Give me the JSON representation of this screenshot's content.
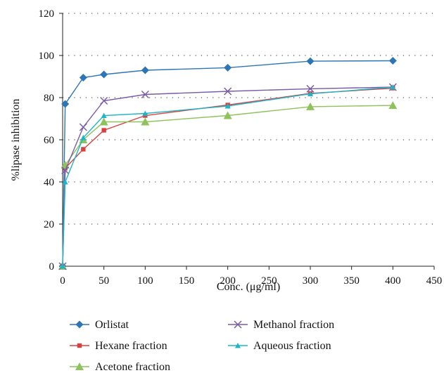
{
  "chart_data": {
    "type": "line",
    "xlabel": "Conc. (μg/ml)",
    "ylabel": "%lipase inhibition",
    "xlim": [
      0,
      450
    ],
    "ylim": [
      0,
      120
    ],
    "xticks": [
      0,
      50,
      100,
      150,
      200,
      250,
      300,
      350,
      400,
      450
    ],
    "yticks": [
      0,
      20,
      40,
      60,
      80,
      100,
      120
    ],
    "grid": "horizontal-dotted",
    "legend_position": "bottom",
    "x": [
      0,
      3.125,
      25,
      50,
      100,
      200,
      300,
      400
    ],
    "series": [
      {
        "name": "Orlistat",
        "color": "#2e75b6",
        "marker": "diamond",
        "values": [
          0,
          77,
          89.5,
          91,
          93,
          94.2,
          97.3,
          97.5
        ]
      },
      {
        "name": "Hexane fraction",
        "color": "#d9413f",
        "marker": "square",
        "values": [
          0,
          46.5,
          55.5,
          64.5,
          71.5,
          76.5,
          82,
          84.5
        ]
      },
      {
        "name": "Acetone fraction",
        "color": "#8ec25a",
        "marker": "triangle",
        "values": [
          0,
          48,
          60,
          68.5,
          68.5,
          71.5,
          75.7,
          76.3
        ]
      },
      {
        "name": "Methanol fraction",
        "color": "#7a5ba6",
        "marker": "x",
        "values": [
          0,
          45.5,
          66,
          78.5,
          81.5,
          83,
          84.2,
          85
        ]
      },
      {
        "name": "Aqueous fraction",
        "color": "#1fb5c8",
        "marker": "smalltriangle",
        "values": [
          0,
          40,
          61,
          71.5,
          72.5,
          76,
          81.8,
          85
        ]
      }
    ]
  }
}
